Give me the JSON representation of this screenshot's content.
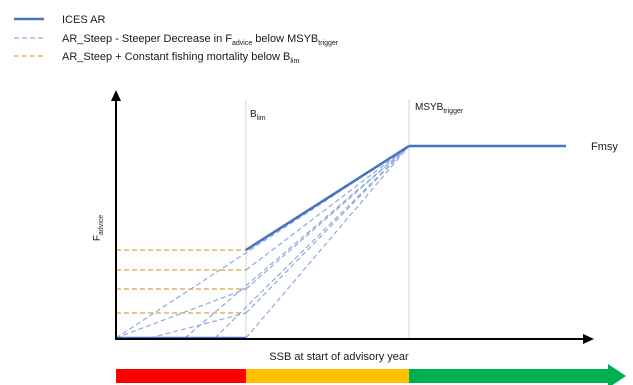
{
  "legend": [
    {
      "text": "ICES AR",
      "style": "solid",
      "color": "#4472C4"
    },
    {
      "text": "AR_Steep - Steeper Decrease in ",
      "sub_base": "F",
      "sub": "advice",
      "suffix": " below MSYB",
      "suffix_sub": "trigger",
      "style": "dashed",
      "color": "#8FAADC"
    },
    {
      "text": "AR_Steep + Constant fishing mortality below ",
      "sub_base": "B",
      "sub": "lim",
      "style": "dashed",
      "color": "#D9A53F"
    }
  ],
  "labels": {
    "blim_base": "B",
    "blim_sub": "lim",
    "msy_base": "MSYB",
    "msy_sub": "trigger",
    "fmsy": "Fmsy",
    "y_axis_base": "F",
    "y_axis_sub": "advice",
    "x_axis": "SSB at start of advisory year"
  },
  "colors": {
    "ices_ar": "#4472C4",
    "steep": "#8FAADC",
    "constant": "#D9A53F",
    "status_red": "#FF0000",
    "status_amber": "#FFC000",
    "status_green": "#00B050"
  },
  "status_bar": [
    {
      "name": "red",
      "color": "#FF0000"
    },
    {
      "name": "amber",
      "color": "#FFC000"
    },
    {
      "name": "green",
      "color": "#00B050"
    }
  ]
}
